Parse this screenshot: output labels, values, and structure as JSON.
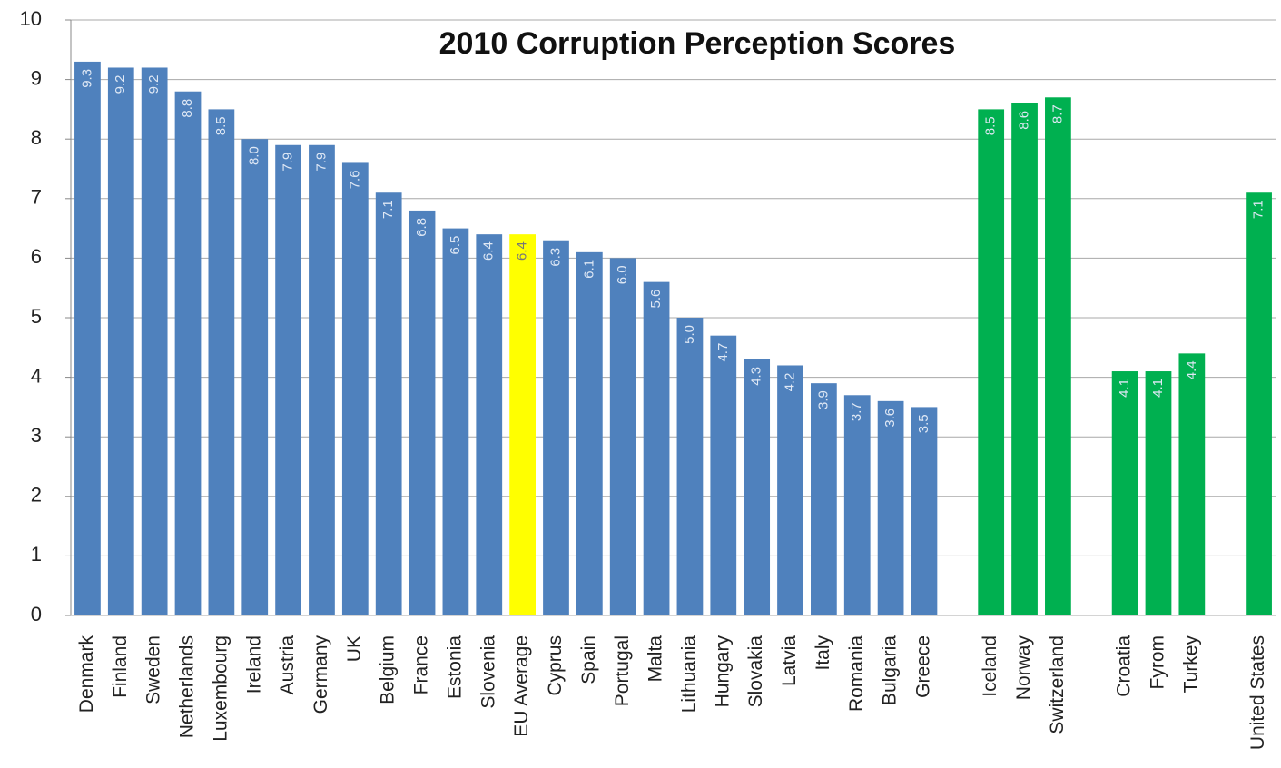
{
  "chart_data": {
    "type": "bar",
    "title": "2010 Corruption Perception Scores",
    "categories": [
      "Denmark",
      "Finland",
      "Sweden",
      "Netherlands",
      "Luxembourg",
      "Ireland",
      "Austria",
      "Germany",
      "UK",
      "Belgium",
      "France",
      "Estonia",
      "Slovenia",
      "EU Average",
      "Cyprus",
      "Spain",
      "Portugal",
      "Malta",
      "Lithuania",
      "Hungary",
      "Slovakia",
      "Latvia",
      "Italy",
      "Romania",
      "Bulgaria",
      "Greece",
      null,
      "Iceland",
      "Norway",
      "Switzerland",
      null,
      "Croatia",
      "Fyrom",
      "Turkey",
      null,
      "United States"
    ],
    "values": [
      9.3,
      9.2,
      9.2,
      8.8,
      8.5,
      8.0,
      7.9,
      7.9,
      7.6,
      7.1,
      6.8,
      6.5,
      6.4,
      6.4,
      6.3,
      6.1,
      6.0,
      5.6,
      5.0,
      4.7,
      4.3,
      4.2,
      3.9,
      3.7,
      3.6,
      3.5,
      null,
      8.5,
      8.6,
      8.7,
      null,
      4.1,
      4.1,
      4.4,
      null,
      7.1
    ],
    "value_labels": [
      "9.3",
      "9.2",
      "9.2",
      "8.8",
      "8.5",
      "8.0",
      "7.9",
      "7.9",
      "7.6",
      "7.1",
      "6.8",
      "6.5",
      "6.4",
      "6.4",
      "6.3",
      "6.1",
      "6.0",
      "5.6",
      "5.0",
      "4.7",
      "4.3",
      "4.2",
      "3.9",
      "3.7",
      "3.6",
      "3.5",
      null,
      "8.5",
      "8.6",
      "8.7",
      null,
      "4.1",
      "4.1",
      "4.4",
      null,
      "7.1"
    ],
    "colors": [
      "#4f81bd",
      "#4f81bd",
      "#4f81bd",
      "#4f81bd",
      "#4f81bd",
      "#4f81bd",
      "#4f81bd",
      "#4f81bd",
      "#4f81bd",
      "#4f81bd",
      "#4f81bd",
      "#4f81bd",
      "#4f81bd",
      "#ffff00",
      "#4f81bd",
      "#4f81bd",
      "#4f81bd",
      "#4f81bd",
      "#4f81bd",
      "#4f81bd",
      "#4f81bd",
      "#4f81bd",
      "#4f81bd",
      "#4f81bd",
      "#4f81bd",
      "#4f81bd",
      null,
      "#00b050",
      "#00b050",
      "#00b050",
      null,
      "#00b050",
      "#00b050",
      "#00b050",
      null,
      "#00b050"
    ],
    "ylim": [
      0,
      10
    ],
    "yticks": [
      0,
      1,
      2,
      3,
      4,
      5,
      6,
      7,
      8,
      9,
      10
    ],
    "grid": true
  }
}
